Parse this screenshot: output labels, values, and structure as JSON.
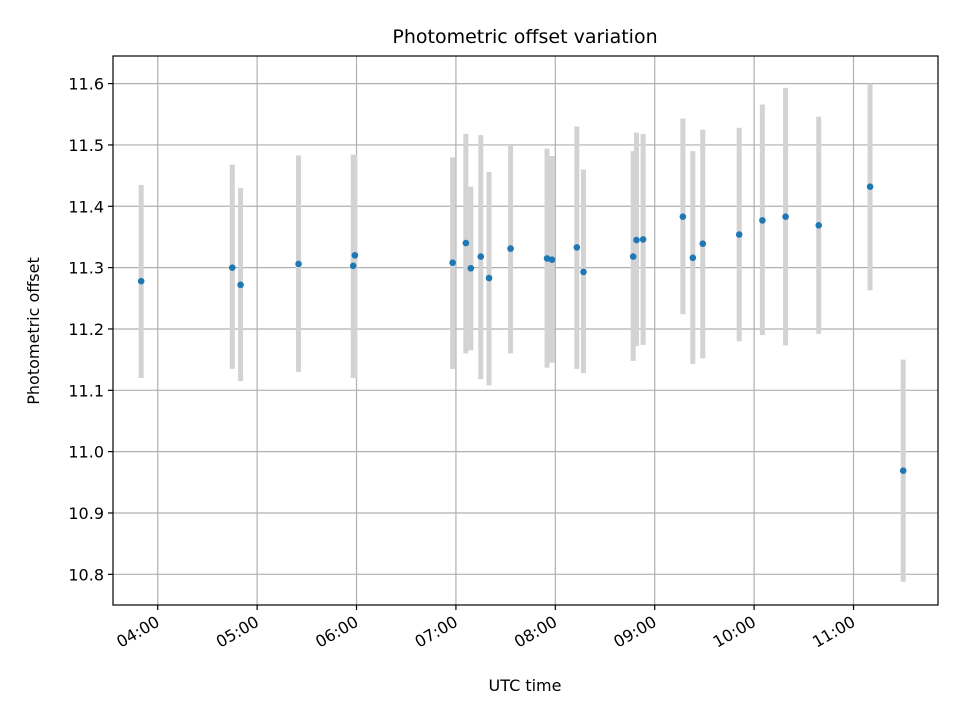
{
  "chart_data": {
    "type": "scatter",
    "title": "Photometric offset variation",
    "xlabel": "UTC time",
    "ylabel": "Photometric offset",
    "xlim": [
      "03:33",
      "11:51"
    ],
    "ylim": [
      10.75,
      11.645
    ],
    "grid": true,
    "x_ticks": [
      "04:00",
      "05:00",
      "06:00",
      "07:00",
      "08:00",
      "09:00",
      "10:00",
      "11:00"
    ],
    "y_ticks": [
      10.8,
      10.9,
      11.0,
      11.1,
      11.2,
      11.3,
      11.4,
      11.5,
      11.6
    ],
    "colors": {
      "points": "#1f77b4",
      "errorbars": "#d3d3d3",
      "grid": "#b0b0b0"
    },
    "series": [
      {
        "points": [
          {
            "x": "03:50",
            "y": 11.278,
            "err": [
              11.12,
              11.435
            ]
          },
          {
            "x": "04:45",
            "y": 11.3,
            "err": [
              11.135,
              11.468
            ]
          },
          {
            "x": "04:50",
            "y": 11.272,
            "err": [
              11.115,
              11.43
            ]
          },
          {
            "x": "05:25",
            "y": 11.306,
            "err": [
              11.13,
              11.483
            ]
          },
          {
            "x": "05:58",
            "y": 11.303,
            "err": [
              11.12,
              11.484
            ]
          },
          {
            "x": "05:59",
            "y": 11.32,
            "err": [
              11.12,
              11.484
            ]
          },
          {
            "x": "06:58",
            "y": 11.308,
            "err": [
              11.135,
              11.48
            ]
          },
          {
            "x": "07:06",
            "y": 11.34,
            "err": [
              11.16,
              11.518
            ]
          },
          {
            "x": "07:09",
            "y": 11.299,
            "err": [
              11.165,
              11.432
            ]
          },
          {
            "x": "07:15",
            "y": 11.318,
            "err": [
              11.118,
              11.516
            ]
          },
          {
            "x": "07:20",
            "y": 11.283,
            "err": [
              11.108,
              11.456
            ]
          },
          {
            "x": "07:33",
            "y": 11.331,
            "err": [
              11.16,
              11.5
            ]
          },
          {
            "x": "07:55",
            "y": 11.315,
            "err": [
              11.137,
              11.494
            ]
          },
          {
            "x": "07:58",
            "y": 11.313,
            "err": [
              11.145,
              11.482
            ]
          },
          {
            "x": "08:13",
            "y": 11.333,
            "err": [
              11.135,
              11.53
            ]
          },
          {
            "x": "08:17",
            "y": 11.293,
            "err": [
              11.128,
              11.46
            ]
          },
          {
            "x": "08:47",
            "y": 11.318,
            "err": [
              11.148,
              11.49
            ]
          },
          {
            "x": "08:49",
            "y": 11.345,
            "err": [
              11.172,
              11.52
            ]
          },
          {
            "x": "08:53",
            "y": 11.346,
            "err": [
              11.174,
              11.518
            ]
          },
          {
            "x": "09:17",
            "y": 11.383,
            "err": [
              11.224,
              11.543
            ]
          },
          {
            "x": "09:23",
            "y": 11.316,
            "err": [
              11.143,
              11.49
            ]
          },
          {
            "x": "09:29",
            "y": 11.339,
            "err": [
              11.152,
              11.525
            ]
          },
          {
            "x": "09:51",
            "y": 11.354,
            "err": [
              11.18,
              11.528
            ]
          },
          {
            "x": "10:05",
            "y": 11.377,
            "err": [
              11.19,
              11.566
            ]
          },
          {
            "x": "10:19",
            "y": 11.383,
            "err": [
              11.173,
              11.593
            ]
          },
          {
            "x": "10:39",
            "y": 11.369,
            "err": [
              11.192,
              11.546
            ]
          },
          {
            "x": "11:10",
            "y": 11.432,
            "err": [
              11.263,
              11.6
            ]
          },
          {
            "x": "11:30",
            "y": 10.969,
            "err": [
              10.788,
              11.15
            ]
          }
        ]
      }
    ]
  }
}
